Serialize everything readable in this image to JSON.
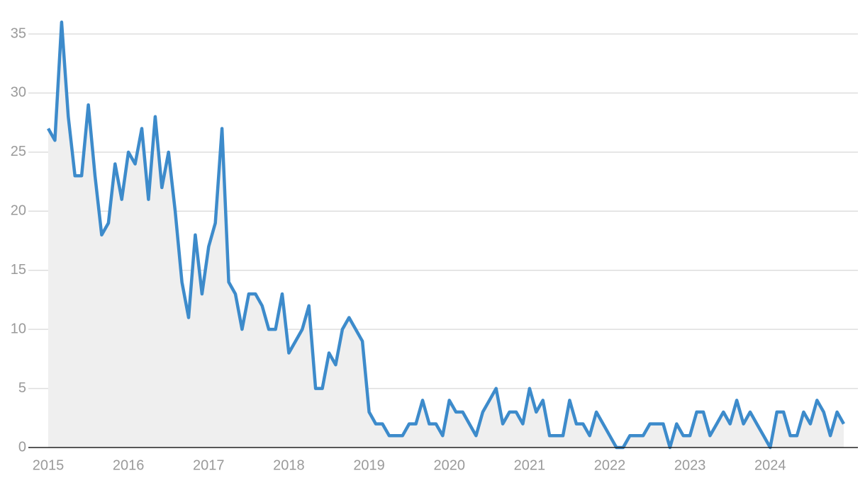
{
  "chart_data": {
    "type": "line",
    "x": [
      "2015-01",
      "2015-02",
      "2015-03",
      "2015-04",
      "2015-05",
      "2015-06",
      "2015-07",
      "2015-08",
      "2015-09",
      "2015-10",
      "2015-11",
      "2015-12",
      "2016-01",
      "2016-02",
      "2016-03",
      "2016-04",
      "2016-05",
      "2016-06",
      "2016-07",
      "2016-08",
      "2016-09",
      "2016-10",
      "2016-11",
      "2016-12",
      "2017-01",
      "2017-02",
      "2017-03",
      "2017-04",
      "2017-05",
      "2017-06",
      "2017-07",
      "2017-08",
      "2017-09",
      "2017-10",
      "2017-11",
      "2017-12",
      "2018-01",
      "2018-02",
      "2018-03",
      "2018-04",
      "2018-05",
      "2018-06",
      "2018-07",
      "2018-08",
      "2018-09",
      "2018-10",
      "2018-11",
      "2018-12",
      "2019-01",
      "2019-02",
      "2019-03",
      "2019-04",
      "2019-05",
      "2019-06",
      "2019-07",
      "2019-08",
      "2019-09",
      "2019-10",
      "2019-11",
      "2019-12",
      "2020-01",
      "2020-02",
      "2020-03",
      "2020-04",
      "2020-05",
      "2020-06",
      "2020-07",
      "2020-08",
      "2020-09",
      "2020-10",
      "2020-11",
      "2020-12",
      "2021-01",
      "2021-02",
      "2021-03",
      "2021-04",
      "2021-05",
      "2021-06",
      "2021-07",
      "2021-08",
      "2021-09",
      "2021-10",
      "2021-11",
      "2021-12",
      "2022-01",
      "2022-02",
      "2022-03",
      "2022-04",
      "2022-05",
      "2022-06",
      "2022-07",
      "2022-08",
      "2022-09",
      "2022-10",
      "2022-11",
      "2022-12",
      "2023-01",
      "2023-02",
      "2023-03",
      "2023-04",
      "2023-05",
      "2023-06",
      "2023-07",
      "2023-08",
      "2023-09",
      "2023-10",
      "2023-11",
      "2023-12",
      "2024-01",
      "2024-02",
      "2024-03",
      "2024-04",
      "2024-05",
      "2024-06",
      "2024-07",
      "2024-08",
      "2024-09",
      "2024-10",
      "2024-11",
      "2024-12"
    ],
    "series": [
      {
        "color": "#3d8bcb",
        "fill": "#efefef",
        "values": [
          27,
          26,
          36,
          28,
          23,
          23,
          29,
          23,
          18,
          19,
          24,
          21,
          25,
          24,
          27,
          21,
          28,
          22,
          25,
          20,
          14,
          11,
          18,
          13,
          17,
          19,
          27,
          14,
          13,
          10,
          13,
          13,
          12,
          10,
          10,
          13,
          8,
          9,
          10,
          12,
          5,
          5,
          8,
          7,
          10,
          11,
          10,
          9,
          3,
          2,
          2,
          1,
          1,
          1,
          2,
          2,
          4,
          2,
          2,
          1,
          4,
          3,
          3,
          2,
          1,
          3,
          4,
          5,
          2,
          3,
          3,
          2,
          5,
          3,
          4,
          1,
          1,
          1,
          4,
          2,
          2,
          1,
          3,
          2,
          1,
          0,
          0,
          1,
          1,
          1,
          2,
          2,
          2,
          0,
          2,
          1,
          1,
          3,
          3,
          1,
          2,
          3,
          2,
          4,
          2,
          3,
          2,
          1,
          0,
          3,
          3,
          1,
          1,
          3,
          2,
          4,
          3,
          1,
          3,
          2
        ]
      }
    ],
    "xticks": [
      2015,
      2016,
      2017,
      2018,
      2019,
      2020,
      2021,
      2022,
      2023,
      2024
    ],
    "ylim": [
      0,
      35
    ],
    "yticks": [
      0,
      5,
      10,
      15,
      20,
      25,
      30,
      35
    ],
    "grid": true
  }
}
